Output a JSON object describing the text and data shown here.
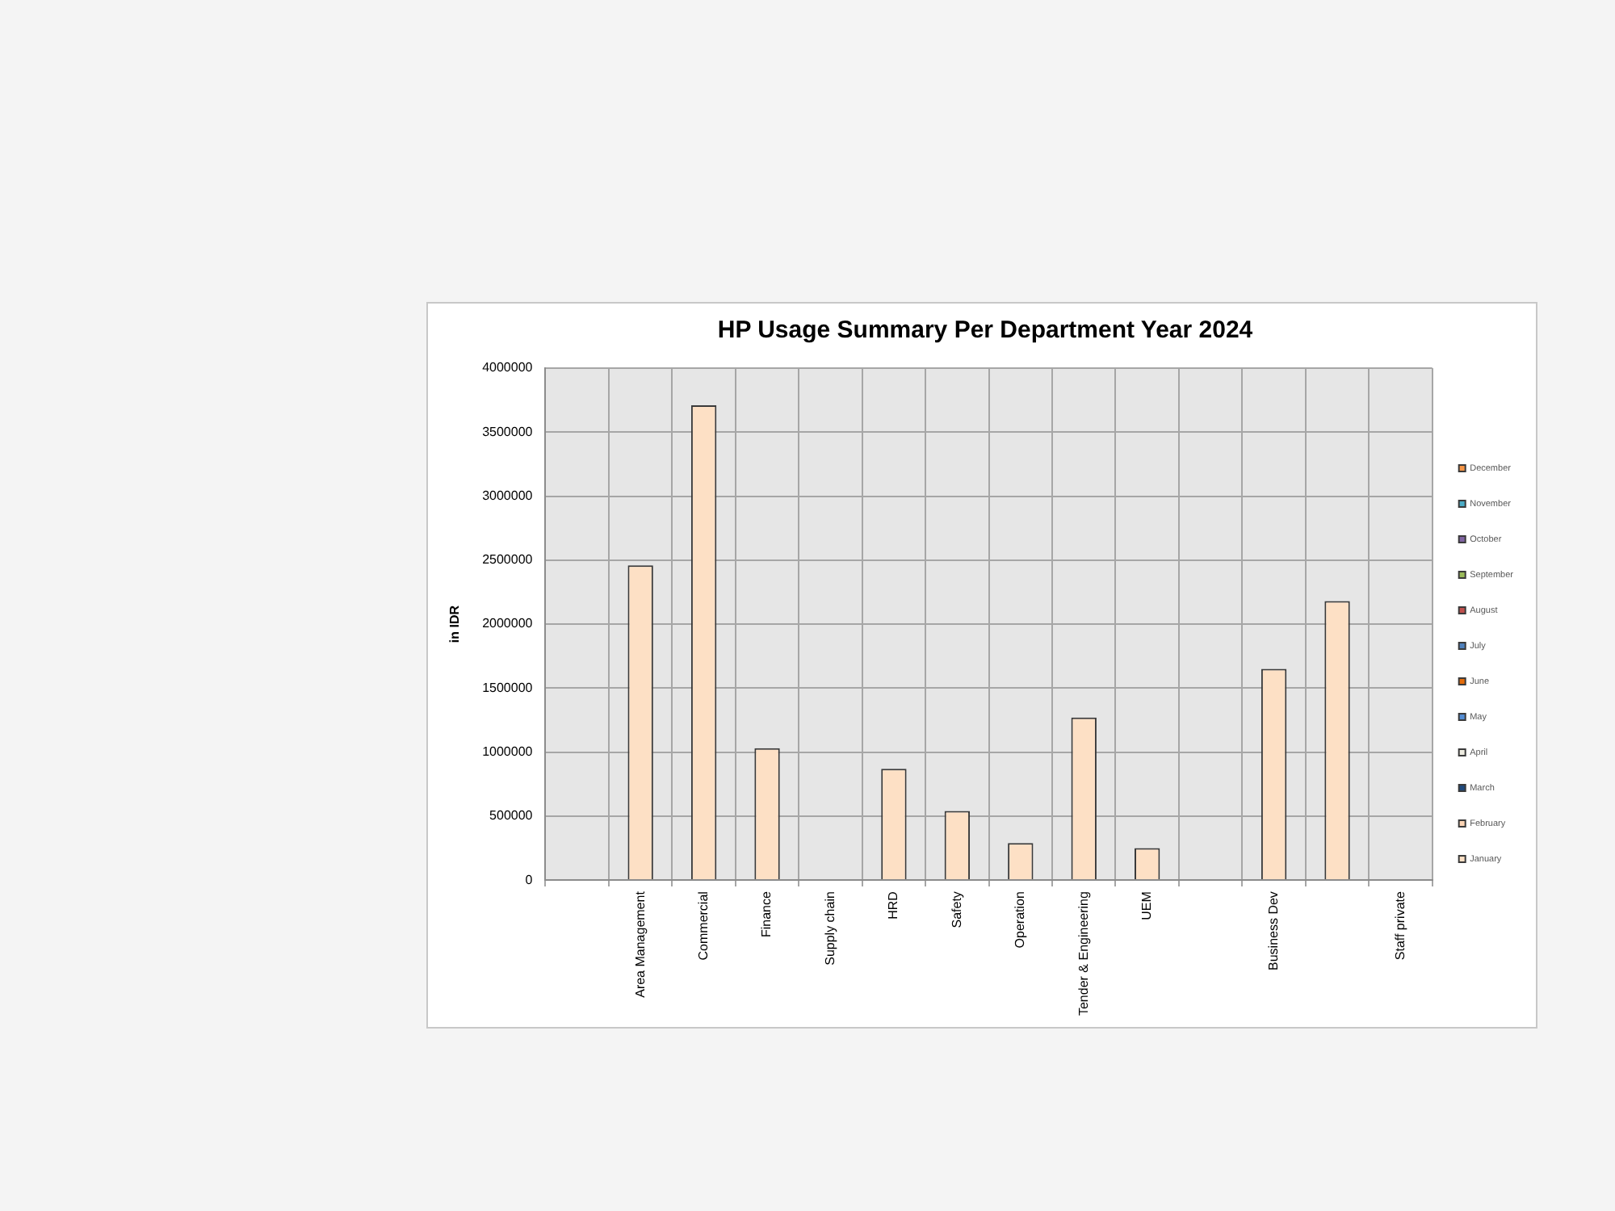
{
  "chart_data": {
    "type": "bar",
    "title": "HP Usage Summary Per Department Year 2024",
    "ylabel": "in IDR",
    "categories": [
      null,
      "Area Management",
      "Commercial",
      "Finance",
      "Supply chain",
      "HRD",
      "Safety",
      "Operation",
      "Tender & Engineering",
      "UEM",
      null,
      "Business Dev",
      null,
      "Staff private"
    ],
    "series": [
      {
        "name": "January",
        "color": "#fde0c5",
        "values": [
          null,
          2460000,
          3710000,
          1030000,
          null,
          870000,
          540000,
          290000,
          1270000,
          250000,
          null,
          1650000,
          2180000,
          null
        ]
      },
      {
        "name": "February",
        "color": "#fbd4b4",
        "values": [
          null,
          null,
          null,
          null,
          null,
          null,
          null,
          null,
          null,
          null,
          null,
          null,
          null,
          null
        ]
      },
      {
        "name": "March",
        "color": "#1f497d",
        "values": [
          null,
          null,
          null,
          null,
          null,
          null,
          null,
          null,
          null,
          null,
          null,
          null,
          null,
          null
        ]
      },
      {
        "name": "April",
        "color": "#eeece1",
        "values": [
          null,
          null,
          null,
          null,
          null,
          null,
          null,
          null,
          null,
          null,
          null,
          null,
          null,
          null
        ]
      },
      {
        "name": "May",
        "color": "#548dd4",
        "values": [
          null,
          null,
          null,
          null,
          null,
          null,
          null,
          null,
          null,
          null,
          null,
          null,
          null,
          null
        ]
      },
      {
        "name": "June",
        "color": "#e46c0a",
        "values": [
          null,
          null,
          null,
          null,
          null,
          null,
          null,
          null,
          null,
          null,
          null,
          null,
          null,
          null
        ]
      },
      {
        "name": "July",
        "color": "#4f81bd",
        "values": [
          null,
          null,
          null,
          null,
          null,
          null,
          null,
          null,
          null,
          null,
          null,
          null,
          null,
          null
        ]
      },
      {
        "name": "August",
        "color": "#c0504d",
        "values": [
          null,
          null,
          null,
          null,
          null,
          null,
          null,
          null,
          null,
          null,
          null,
          null,
          null,
          null
        ]
      },
      {
        "name": "September",
        "color": "#9bbb59",
        "values": [
          null,
          null,
          null,
          null,
          null,
          null,
          null,
          null,
          null,
          null,
          null,
          null,
          null,
          null
        ]
      },
      {
        "name": "October",
        "color": "#8064a2",
        "values": [
          null,
          null,
          null,
          null,
          null,
          null,
          null,
          null,
          null,
          null,
          null,
          null,
          null,
          null
        ]
      },
      {
        "name": "November",
        "color": "#4bacc6",
        "values": [
          null,
          null,
          null,
          null,
          null,
          null,
          null,
          null,
          null,
          null,
          null,
          null,
          null,
          null
        ]
      },
      {
        "name": "December",
        "color": "#f79646",
        "values": [
          null,
          null,
          null,
          null,
          null,
          null,
          null,
          null,
          null,
          null,
          null,
          null,
          null,
          null
        ]
      }
    ],
    "stacked": true,
    "ylim": [
      0,
      4000000
    ],
    "yticks": [
      0,
      500000,
      1000000,
      1500000,
      2000000,
      2500000,
      3000000,
      3500000,
      4000000
    ],
    "grid": true,
    "legend": "right"
  }
}
